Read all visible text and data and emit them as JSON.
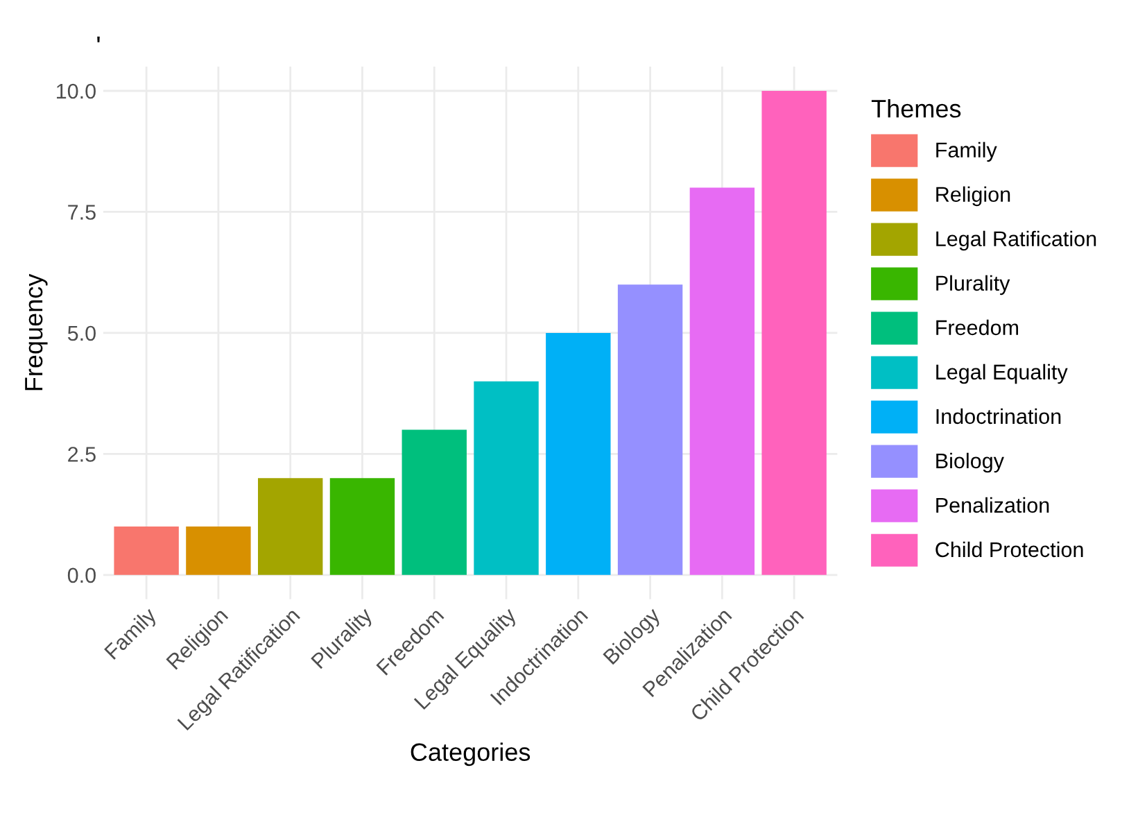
{
  "chart_data": {
    "type": "bar",
    "title": "'",
    "xlabel": "Categories",
    "ylabel": "Frequency",
    "legend_title": "Themes",
    "categories": [
      "Family",
      "Religion",
      "Legal Ratification",
      "Plurality",
      "Freedom",
      "Legal Equality",
      "Indoctrination",
      "Biology",
      "Penalization",
      "Child Protection"
    ],
    "series": [
      {
        "name": "Family",
        "color": "#f8766d",
        "values": [
          1,
          null,
          null,
          null,
          null,
          null,
          null,
          null,
          null,
          null
        ]
      },
      {
        "name": "Religion",
        "color": "#d89000",
        "values": [
          null,
          1,
          null,
          null,
          null,
          null,
          null,
          null,
          null,
          null
        ]
      },
      {
        "name": "Legal Ratification",
        "color": "#a3a500",
        "values": [
          null,
          null,
          2,
          null,
          null,
          null,
          null,
          null,
          null,
          null
        ]
      },
      {
        "name": "Plurality",
        "color": "#39b600",
        "values": [
          null,
          null,
          null,
          2,
          null,
          null,
          null,
          null,
          null,
          null
        ]
      },
      {
        "name": "Freedom",
        "color": "#00bf7d",
        "values": [
          null,
          null,
          null,
          null,
          3,
          null,
          null,
          null,
          null,
          null
        ]
      },
      {
        "name": "Legal Equality",
        "color": "#00bfc4",
        "values": [
          null,
          null,
          null,
          null,
          null,
          4,
          null,
          null,
          null,
          null
        ]
      },
      {
        "name": "Indoctrination",
        "color": "#00b0f6",
        "values": [
          null,
          null,
          null,
          null,
          null,
          null,
          5,
          null,
          null,
          null
        ]
      },
      {
        "name": "Biology",
        "color": "#9590ff",
        "values": [
          null,
          null,
          null,
          null,
          null,
          null,
          null,
          6,
          null,
          null
        ]
      },
      {
        "name": "Penalization",
        "color": "#e76bf3",
        "values": [
          null,
          null,
          null,
          null,
          null,
          null,
          null,
          null,
          8,
          null
        ]
      },
      {
        "name": "Child Protection",
        "color": "#ff62bc",
        "values": [
          null,
          null,
          null,
          null,
          null,
          null,
          null,
          null,
          null,
          10
        ]
      }
    ],
    "ylim": [
      -0.5,
      10.5
    ],
    "yticks": [
      {
        "value": 0,
        "label": "0.0"
      },
      {
        "value": 2.5,
        "label": "2.5"
      },
      {
        "value": 5,
        "label": "5.0"
      },
      {
        "value": 7.5,
        "label": "7.5"
      },
      {
        "value": 10,
        "label": "10.0"
      }
    ],
    "grid": true,
    "legend": "right"
  }
}
